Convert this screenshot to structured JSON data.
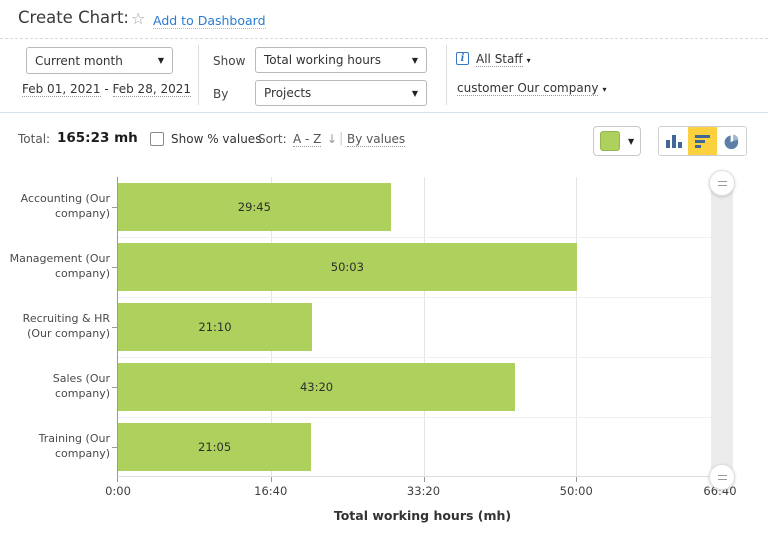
{
  "header": {
    "title": "Create Chart:",
    "add_to_dashboard": "Add to Dashboard"
  },
  "filters": {
    "period": {
      "selected": "Current month",
      "date_from": "Feb 01, 2021",
      "date_separator": "-",
      "date_to": "Feb 28, 2021"
    },
    "show": {
      "label": "Show",
      "selected": "Total working hours"
    },
    "by": {
      "label": "By",
      "selected": "Projects"
    },
    "staff": {
      "value": "All Staff"
    },
    "customer": {
      "value": "customer Our company"
    }
  },
  "toolbar": {
    "total_label": "Total:",
    "total_value": "165:23 mh",
    "show_percent_label": "Show % values",
    "show_percent_checked": false,
    "sort_label": "Sort:",
    "sort_az": "A - Z",
    "sort_arrow": "↓",
    "sort_by_values": "By values",
    "bar_color": "#add15c",
    "chart_type_selected": "horizontal-bar",
    "selected_button_bg": "#fcd13f",
    "icon_color": "#3f6899"
  },
  "chart_data": {
    "type": "bar",
    "orientation": "horizontal",
    "title": "",
    "xlabel": "Total working hours (mh)",
    "ylabel": "",
    "categories": [
      "Accounting (Our company)",
      "Management (Our company)",
      "Recruiting & HR (Our company)",
      "Sales (Our company)",
      "Training (Our company)"
    ],
    "values_label": [
      "29:45",
      "50:03",
      "21:10",
      "43:20",
      "21:05"
    ],
    "values_hours": [
      29.75,
      50.05,
      21.1667,
      43.3333,
      21.0833
    ],
    "x_ticks": [
      "0:00",
      "16:40",
      "33:20",
      "50:00",
      "66:40"
    ],
    "xlim": [
      0,
      66.6667
    ],
    "grid": true,
    "bar_color": "#add15c",
    "legend": "none",
    "total": "165:23 mh"
  }
}
